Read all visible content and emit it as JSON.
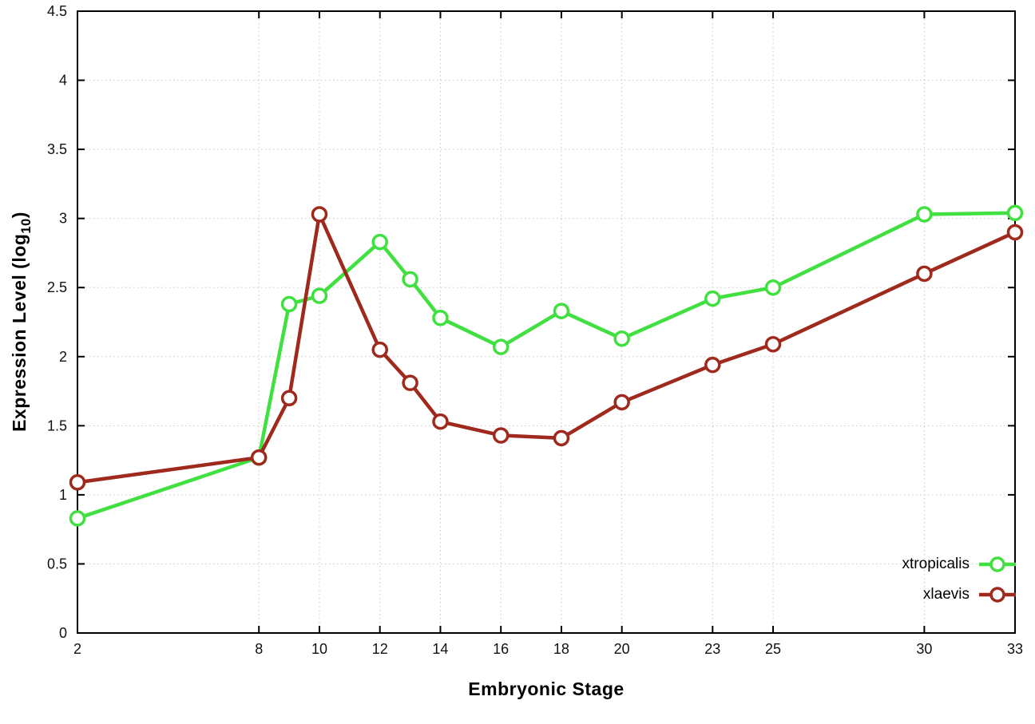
{
  "chart_data": {
    "type": "line",
    "title": "",
    "xlabel": "Embryonic Stage",
    "ylabel": "Expression Level (log10)",
    "ylabel_parts": {
      "prefix": "Expression Level (log",
      "sub": "10",
      "suffix": ")"
    },
    "x": [
      2,
      8,
      9,
      10,
      12,
      13,
      14,
      16,
      18,
      20,
      23,
      25,
      30,
      33
    ],
    "series": [
      {
        "name": "xtropicalis",
        "color": "#3fe03f",
        "values": [
          0.83,
          1.27,
          2.38,
          2.44,
          2.83,
          2.56,
          2.28,
          2.07,
          2.33,
          2.13,
          2.42,
          2.5,
          3.03,
          3.04
        ]
      },
      {
        "name": "xlaevis",
        "color": "#9e291c",
        "values": [
          1.09,
          1.27,
          1.7,
          3.03,
          2.05,
          1.81,
          1.53,
          1.43,
          1.41,
          1.67,
          1.94,
          2.09,
          2.6,
          2.9
        ]
      }
    ],
    "xlim": [
      2,
      33
    ],
    "ylim": [
      0,
      4.5
    ],
    "xticks": [
      2,
      8,
      10,
      12,
      14,
      16,
      18,
      20,
      23,
      25,
      30,
      33
    ],
    "xtick_labels": [
      "2",
      "8",
      "10",
      "12",
      "14",
      "16",
      "18",
      "20",
      "23",
      "25",
      "30",
      "33"
    ],
    "yticks": [
      0,
      0.5,
      1,
      1.5,
      2,
      2.5,
      3,
      3.5,
      4,
      4.5
    ],
    "ytick_labels": [
      "0",
      "0.5",
      "1",
      "1.5",
      "2",
      "2.5",
      "3",
      "3.5",
      "4",
      "4.5"
    ],
    "grid": true,
    "legend_position": "bottom-right",
    "colors": {
      "background": "#ffffff",
      "grid": "#c6c6c6",
      "axis": "#000000",
      "tick_text": "#111111",
      "marker_fill": "#ffffff"
    }
  }
}
